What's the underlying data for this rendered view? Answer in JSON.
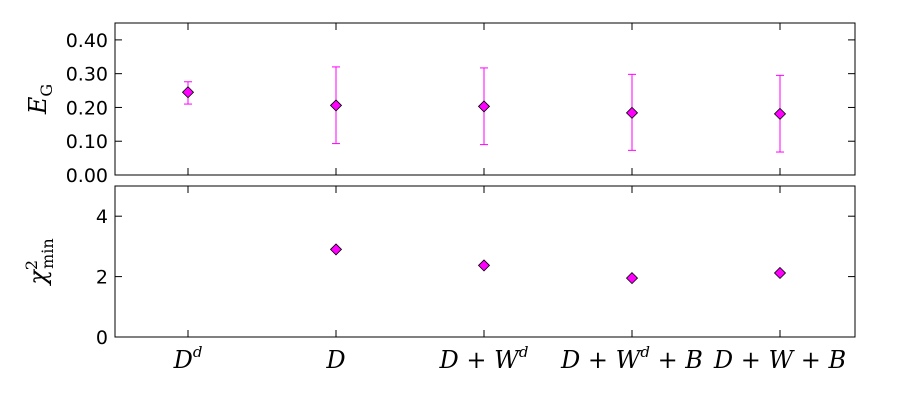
{
  "chart_data": [
    {
      "type": "scatter",
      "ylabel": "E_G",
      "ylabel_main": "E",
      "ylabel_sub": "G",
      "ylim": [
        0,
        0.45
      ],
      "yticks": [
        0.0,
        0.1,
        0.2,
        0.3,
        0.4
      ],
      "ytick_labels": [
        "0.00",
        "0.10",
        "0.20",
        "0.30",
        "0.40"
      ],
      "marker": "diamond",
      "marker_color": "#ff00ff",
      "error_color": "#ff00ff",
      "series": [
        {
          "values": [
            0.245,
            0.206,
            0.203,
            0.184,
            0.181
          ],
          "error_low": [
            0.21,
            0.093,
            0.09,
            0.073,
            0.068
          ],
          "error_high": [
            0.276,
            0.32,
            0.317,
            0.298,
            0.295
          ]
        }
      ]
    },
    {
      "type": "scatter",
      "ylabel": "χ²_min",
      "ylabel_main": "χ",
      "ylabel_sup": "2",
      "ylabel_sub": "min",
      "ylim": [
        0,
        5
      ],
      "yticks": [
        0,
        2,
        4
      ],
      "ytick_labels": [
        "0",
        "2",
        "4"
      ],
      "marker": "diamond",
      "marker_color": "#ff00ff",
      "series": [
        {
          "values": [
            null,
            2.9,
            2.37,
            1.95,
            2.12
          ]
        }
      ]
    }
  ],
  "categories": [
    {
      "base": "D",
      "sup": "d",
      "tail": ""
    },
    {
      "base": "D",
      "sup": "",
      "tail": ""
    },
    {
      "base": "D + W",
      "sup": "d",
      "tail": ""
    },
    {
      "base": "D + W",
      "sup": "d",
      "tail": " + B"
    },
    {
      "base": "D + W + B",
      "sup": "",
      "tail": ""
    }
  ]
}
